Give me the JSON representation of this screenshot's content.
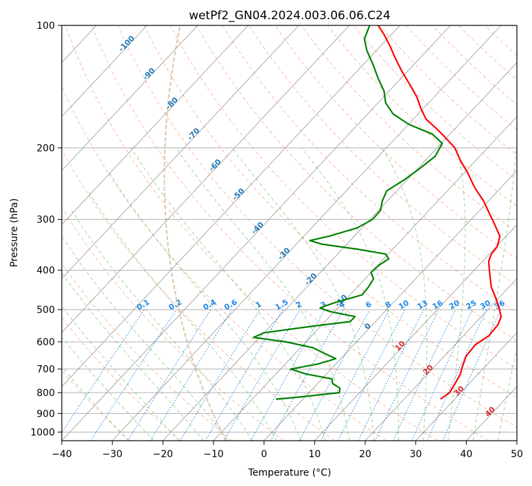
{
  "chart_data": {
    "type": "skew-t log-p sounding",
    "title": "wetPf2_GN04.2024.003.06.06.C24",
    "xlabel": "Temperature (°C)",
    "ylabel": "Pressure (hPa)",
    "xlim": [
      -40,
      50
    ],
    "ylim": [
      1050,
      100
    ],
    "y_scale": "log",
    "grid": true,
    "x_ticks": [
      -40,
      -30,
      -20,
      -10,
      0,
      10,
      20,
      30,
      40,
      50
    ],
    "x_tick_labels": [
      "−40",
      "−30",
      "−20",
      "−10",
      "0",
      "10",
      "20",
      "30",
      "40",
      "50"
    ],
    "y_ticks": [
      100,
      200,
      300,
      400,
      500,
      600,
      700,
      800,
      900,
      1000
    ],
    "y_tick_labels": [
      "100",
      "200",
      "300",
      "400",
      "500",
      "600",
      "700",
      "800",
      "900",
      "1000"
    ],
    "colors": {
      "temperature": "#ff0000",
      "dewpoint": "#008000",
      "isotherm": "#808080",
      "grid": "#b0b0b0",
      "dry_adiabat": "#ff7f50",
      "moist_adiabat": "#2ca02c",
      "mixing_ratio": "#1e88e5",
      "isotherm_label": "#1f77b4",
      "red_label": "#d62728",
      "boundary": "#d2b48c"
    },
    "series": [
      {
        "name": "",
        "color": "#ff0000",
        "points": [
          {
            "p": 830,
            "t": 27.2
          },
          {
            "p": 800,
            "t": 27.8
          },
          {
            "p": 760,
            "t": 27.2
          },
          {
            "p": 720,
            "t": 26.5
          },
          {
            "p": 690,
            "t": 25.5
          },
          {
            "p": 650,
            "t": 24.3
          },
          {
            "p": 610,
            "t": 24.0
          },
          {
            "p": 580,
            "t": 25.0
          },
          {
            "p": 545,
            "t": 24.8
          },
          {
            "p": 520,
            "t": 23.9
          },
          {
            "p": 495,
            "t": 21.9
          },
          {
            "p": 470,
            "t": 19.6
          },
          {
            "p": 440,
            "t": 16.5
          },
          {
            "p": 400,
            "t": 13.0
          },
          {
            "p": 380,
            "t": 11.2
          },
          {
            "p": 365,
            "t": 10.4
          },
          {
            "p": 350,
            "t": 10.2
          },
          {
            "p": 330,
            "t": 8.8
          },
          {
            "p": 305,
            "t": 5.0
          },
          {
            "p": 290,
            "t": 2.5
          },
          {
            "p": 270,
            "t": -1.0
          },
          {
            "p": 250,
            "t": -5.3
          },
          {
            "p": 230,
            "t": -9.4
          },
          {
            "p": 215,
            "t": -13.0
          },
          {
            "p": 200,
            "t": -16.5
          },
          {
            "p": 188,
            "t": -20.5
          },
          {
            "p": 178,
            "t": -24.2
          },
          {
            "p": 170,
            "t": -27.5
          },
          {
            "p": 160,
            "t": -30.5
          },
          {
            "p": 150,
            "t": -33.4
          },
          {
            "p": 140,
            "t": -37.0
          },
          {
            "p": 130,
            "t": -41.0
          },
          {
            "p": 120,
            "t": -45.0
          },
          {
            "p": 112,
            "t": -48.3
          },
          {
            "p": 105,
            "t": -51.6
          },
          {
            "p": 100,
            "t": -54.3
          }
        ]
      },
      {
        "name": "",
        "color": "#008000",
        "points": [
          {
            "p": 830,
            "t": -5.3
          },
          {
            "p": 820,
            "t": -1.0
          },
          {
            "p": 800,
            "t": 6.0
          },
          {
            "p": 780,
            "t": 5.3
          },
          {
            "p": 760,
            "t": 3.0
          },
          {
            "p": 740,
            "t": 2.0
          },
          {
            "p": 720,
            "t": -4.0
          },
          {
            "p": 700,
            "t": -8.0
          },
          {
            "p": 680,
            "t": -3.5
          },
          {
            "p": 660,
            "t": -1.0
          },
          {
            "p": 640,
            "t": -4.3
          },
          {
            "p": 620,
            "t": -7.6
          },
          {
            "p": 600,
            "t": -14.0
          },
          {
            "p": 585,
            "t": -21.2
          },
          {
            "p": 570,
            "t": -20.0
          },
          {
            "p": 550,
            "t": -12.0
          },
          {
            "p": 535,
            "t": -5.0
          },
          {
            "p": 520,
            "t": -5.0
          },
          {
            "p": 505,
            "t": -11.0
          },
          {
            "p": 495,
            "t": -13.5
          },
          {
            "p": 482,
            "t": -11.8
          },
          {
            "p": 460,
            "t": -7.6
          },
          {
            "p": 440,
            "t": -7.8
          },
          {
            "p": 420,
            "t": -8.3
          },
          {
            "p": 405,
            "t": -10.0
          },
          {
            "p": 390,
            "t": -9.8
          },
          {
            "p": 375,
            "t": -9.0
          },
          {
            "p": 365,
            "t": -10.5
          },
          {
            "p": 355,
            "t": -17.0
          },
          {
            "p": 345,
            "t": -25.0
          },
          {
            "p": 338,
            "t": -28.0
          },
          {
            "p": 330,
            "t": -25.0
          },
          {
            "p": 315,
            "t": -21.0
          },
          {
            "p": 300,
            "t": -19.5
          },
          {
            "p": 285,
            "t": -19.6
          },
          {
            "p": 270,
            "t": -21.0
          },
          {
            "p": 255,
            "t": -22.0
          },
          {
            "p": 240,
            "t": -20.6
          },
          {
            "p": 225,
            "t": -19.6
          },
          {
            "p": 210,
            "t": -18.8
          },
          {
            "p": 195,
            "t": -19.8
          },
          {
            "p": 185,
            "t": -23.5
          },
          {
            "p": 175,
            "t": -30.0
          },
          {
            "p": 165,
            "t": -35.0
          },
          {
            "p": 155,
            "t": -38.5
          },
          {
            "p": 145,
            "t": -41.0
          },
          {
            "p": 135,
            "t": -44.5
          },
          {
            "p": 125,
            "t": -48.0
          },
          {
            "p": 115,
            "t": -52.0
          },
          {
            "p": 108,
            "t": -54.5
          },
          {
            "p": 100,
            "t": -56.0
          }
        ]
      }
    ],
    "isotherm_labels": [
      {
        "text": "-100",
        "t": -100,
        "p": 112
      },
      {
        "text": "-90",
        "t": -90,
        "p": 133
      },
      {
        "text": "-80",
        "t": -80,
        "p": 157
      },
      {
        "text": "-70",
        "t": -70,
        "p": 187
      },
      {
        "text": "-60",
        "t": -60,
        "p": 223
      },
      {
        "text": "-50",
        "t": -50,
        "p": 263
      },
      {
        "text": "-40",
        "t": -40,
        "p": 318
      },
      {
        "text": "-30",
        "t": -30,
        "p": 368
      },
      {
        "text": "-20",
        "t": -20,
        "p": 425
      },
      {
        "text": "-10",
        "t": -10,
        "p": 480
      },
      {
        "text": "0",
        "t": 0,
        "p": 555
      }
    ],
    "mixing_ratio_labels": [
      "0.1",
      "0.2",
      "0.4",
      "0.6",
      "1",
      "1.5",
      "2",
      "3",
      "4",
      "6",
      "8",
      "10",
      "13",
      "16",
      "20",
      "25",
      "30",
      "36"
    ],
    "red_labels": [
      {
        "text": "10",
        "t": 10,
        "p": 620
      },
      {
        "text": "20",
        "t": 20,
        "p": 710
      },
      {
        "text": "30",
        "t": 30,
        "p": 800
      },
      {
        "text": "40",
        "t": 40,
        "p": 900
      }
    ]
  }
}
